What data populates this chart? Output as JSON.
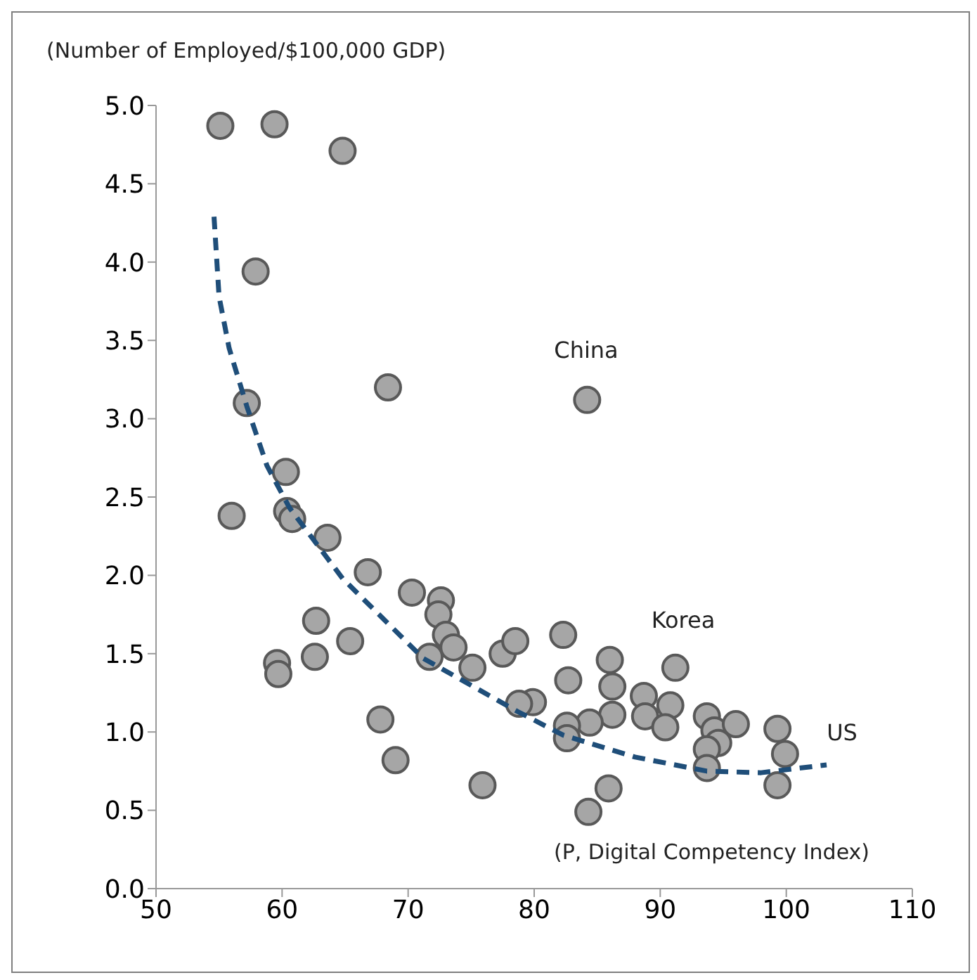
{
  "chart_data": {
    "type": "scatter",
    "ylabel": "(Number of Employed/$100,000 GDP)",
    "xlabel": "(P, Digital Competency Index)",
    "xlim": [
      50,
      110
    ],
    "xticks": [
      50,
      60,
      70,
      80,
      90,
      100,
      110
    ],
    "ylim": [
      0,
      5
    ],
    "yticks": [
      {
        "value": 0,
        "label": "0.0"
      },
      {
        "value": 0.5,
        "label": "0.5"
      },
      {
        "value": 1,
        "label": "1.0"
      },
      {
        "value": 1.5,
        "label": "1.5"
      },
      {
        "value": 2,
        "label": "2.0"
      },
      {
        "value": 2.5,
        "label": "2.5"
      },
      {
        "value": 3,
        "label": "3.0"
      },
      {
        "value": 3.5,
        "label": "3.5"
      },
      {
        "value": 4,
        "label": "4.0"
      },
      {
        "value": 4.5,
        "label": "4.5"
      },
      {
        "value": 5,
        "label": "5.0"
      }
    ],
    "series": [
      {
        "color": "#a6a6a6",
        "marker": "circle",
        "x": [
          55.1,
          59.4,
          64.8,
          57.9,
          68.4,
          57.2,
          84.2,
          60.3,
          56.0,
          60.4,
          60.8,
          63.6,
          66.8,
          70.3,
          72.6,
          72.4,
          73.0,
          73.6,
          62.7,
          65.4,
          59.6,
          59.7,
          62.6,
          71.7,
          75.1,
          77.5,
          78.5,
          82.3,
          67.8,
          69.0,
          75.9,
          79.9,
          78.8,
          82.7,
          86.2,
          86.0,
          91.2,
          88.7,
          90.8,
          88.8,
          90.4,
          86.2,
          84.4,
          82.6,
          82.6,
          85.9,
          84.3,
          93.7,
          94.3,
          94.6,
          93.7,
          93.7,
          96.0,
          99.3,
          99.9,
          99.3
        ],
        "values": [
          4.87,
          4.88,
          4.71,
          3.94,
          3.2,
          3.1,
          3.12,
          2.66,
          2.38,
          2.41,
          2.36,
          2.24,
          2.02,
          1.89,
          1.84,
          1.75,
          1.62,
          1.54,
          1.71,
          1.58,
          1.44,
          1.37,
          1.48,
          1.48,
          1.41,
          1.5,
          1.58,
          1.62,
          1.08,
          0.82,
          0.66,
          1.19,
          1.18,
          1.33,
          1.29,
          1.46,
          1.41,
          1.23,
          1.17,
          1.1,
          1.03,
          1.11,
          1.06,
          1.04,
          0.96,
          0.64,
          0.49,
          1.1,
          1.01,
          0.93,
          0.89,
          0.77,
          1.05,
          1.02,
          0.86,
          0.66
        ]
      },
      {
        "type": "line",
        "color": "#1f4e79",
        "marker": "none",
        "line_style": "dashed",
        "x": [
          54.6,
          55.0,
          55.8,
          57.2,
          58.8,
          60.6,
          64.8,
          71.2,
          78.7,
          82.3,
          88.0,
          93.7,
          98.0,
          103.2
        ],
        "values": [
          4.29,
          3.78,
          3.45,
          3.08,
          2.7,
          2.43,
          1.98,
          1.47,
          1.13,
          0.98,
          0.84,
          0.75,
          0.74,
          0.79
        ]
      }
    ],
    "annotations": [
      "China",
      "Korea",
      "US"
    ]
  }
}
